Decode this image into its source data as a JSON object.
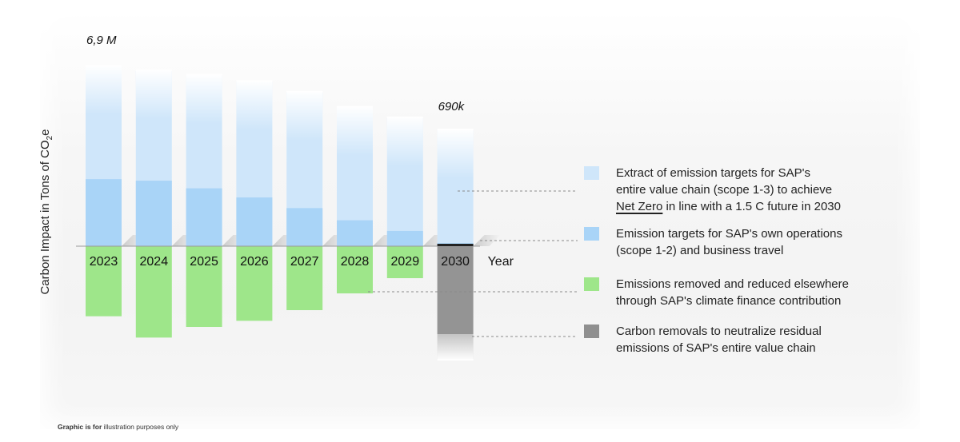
{
  "chart_data": {
    "type": "bar",
    "xlabel": "Year",
    "ylabel_main": "Carbon Impact in Tons of CO",
    "ylabel_sub": "2",
    "ylabel_end": "e",
    "categories": [
      "2023",
      "2024",
      "2025",
      "2026",
      "2027",
      "2028",
      "2029",
      "2030"
    ],
    "ylim": [
      -4800000,
      6900000
    ],
    "annotations": [
      {
        "category": "2023",
        "text": "6,9 M"
      },
      {
        "category": "2030",
        "text": "690k"
      }
    ],
    "series": [
      {
        "key": "value_chain",
        "color": "#cfe6fa",
        "values": [
          5900000,
          5750000,
          5600000,
          5400000,
          5050000,
          4550000,
          4200000,
          3800000
        ]
      },
      {
        "key": "own_ops",
        "color": "#a9d4f7",
        "values": [
          2200000,
          2150000,
          1900000,
          1600000,
          1250000,
          850000,
          500000,
          100000
        ]
      },
      {
        "key": "removed_elsewhere",
        "color": "#9ee68a",
        "values": [
          -2300000,
          -3000000,
          -2650000,
          -2450000,
          -2100000,
          -1550000,
          -1050000,
          0
        ]
      },
      {
        "key": "carbon_removals",
        "color": "#949494",
        "values": [
          0,
          0,
          0,
          0,
          0,
          0,
          0,
          -3700000
        ]
      }
    ]
  },
  "legend": [
    {
      "color": "#cfe6fa",
      "line1": "Extract of emission targets for SAP's",
      "line2": "entire value chain (scope 1-3) to achieve",
      "line3_emph": "Net Zero",
      "line3_rest": " in line with a 1.5 C future in 2030"
    },
    {
      "color": "#a9d4f7",
      "line1": "Emission targets for SAP's own operations",
      "line2": "(scope 1-2) and business travel"
    },
    {
      "color": "#9ee68a",
      "line1": "Emissions removed and reduced elsewhere",
      "line2": "through SAP's climate finance contribution"
    },
    {
      "color": "#8f8f8f",
      "line1": "Carbon removals to neutralize residual",
      "line2": "emissions of SAP's entire value chain"
    }
  ],
  "footnote": {
    "bold": "Graphic is for",
    "rest": " illustration purposes only"
  }
}
